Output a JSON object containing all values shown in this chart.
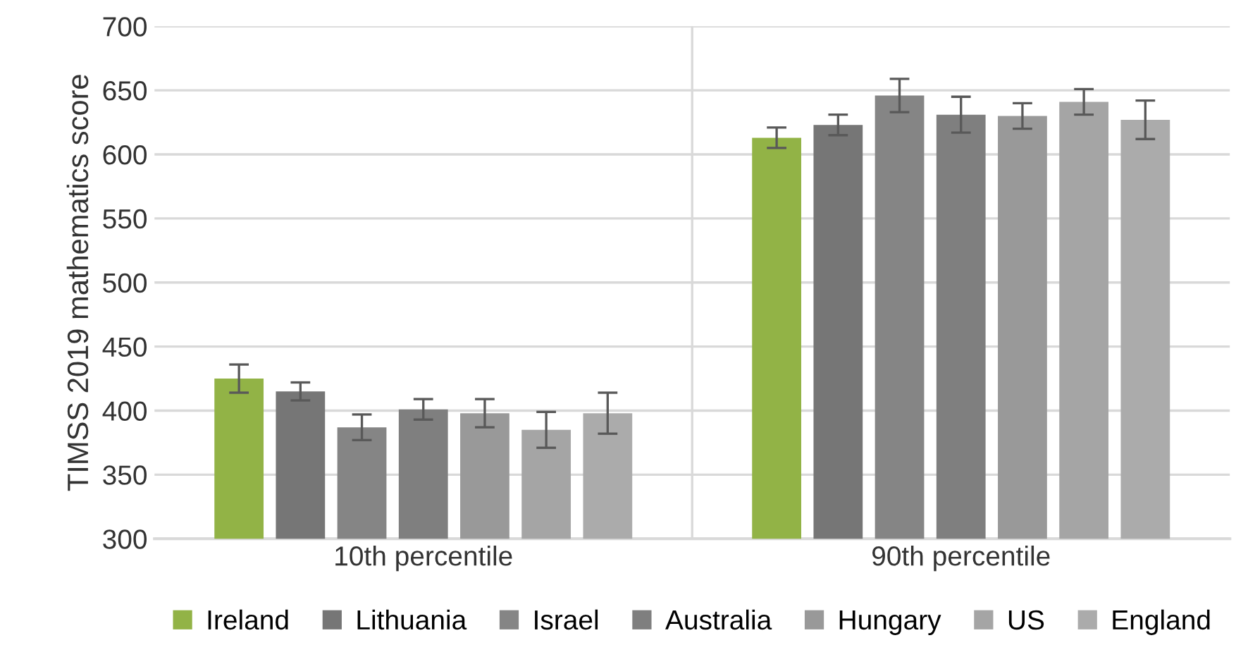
{
  "chart_data": {
    "type": "bar",
    "ylabel": "TIMSS 2019 mathematics score",
    "categories": [
      "10th percentile",
      "90th percentile"
    ],
    "series": [
      {
        "name": "Ireland",
        "color": "#92b346",
        "values": [
          425,
          613
        ],
        "errors": [
          11,
          8
        ]
      },
      {
        "name": "Lithuania",
        "color": "#767676",
        "values": [
          415,
          623
        ],
        "errors": [
          7,
          8
        ]
      },
      {
        "name": "Israel",
        "color": "#858585",
        "values": [
          387,
          646
        ],
        "errors": [
          10,
          13
        ]
      },
      {
        "name": "Australia",
        "color": "#7f7f7f",
        "values": [
          401,
          631
        ],
        "errors": [
          8,
          14
        ]
      },
      {
        "name": "Hungary",
        "color": "#999999",
        "values": [
          398,
          630
        ],
        "errors": [
          11,
          10
        ]
      },
      {
        "name": "US",
        "color": "#a5a5a5",
        "values": [
          385,
          641
        ],
        "errors": [
          14,
          10
        ]
      },
      {
        "name": "England",
        "color": "#ababab",
        "values": [
          398,
          627
        ],
        "errors": [
          16,
          15
        ]
      }
    ],
    "ylim": [
      300,
      700
    ],
    "yticks": [
      300,
      350,
      400,
      450,
      500,
      550,
      600,
      650,
      700
    ],
    "grid": "y",
    "legend": "bottom"
  }
}
